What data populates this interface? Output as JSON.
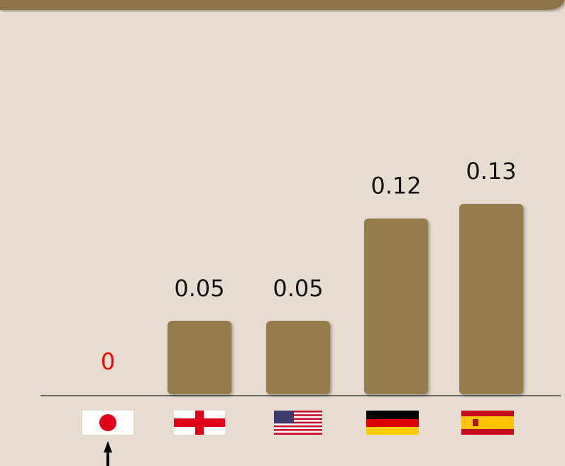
{
  "chart_data": {
    "type": "bar",
    "categories": [
      null,
      null,
      null,
      null,
      null
    ],
    "values": [
      0,
      0.05,
      0.05,
      0.12,
      0.13
    ],
    "color": "#957b4b",
    "value_label_colors": [
      "#ff0000",
      "#111111",
      "#111111",
      "#111111",
      "#111111"
    ]
  }
}
